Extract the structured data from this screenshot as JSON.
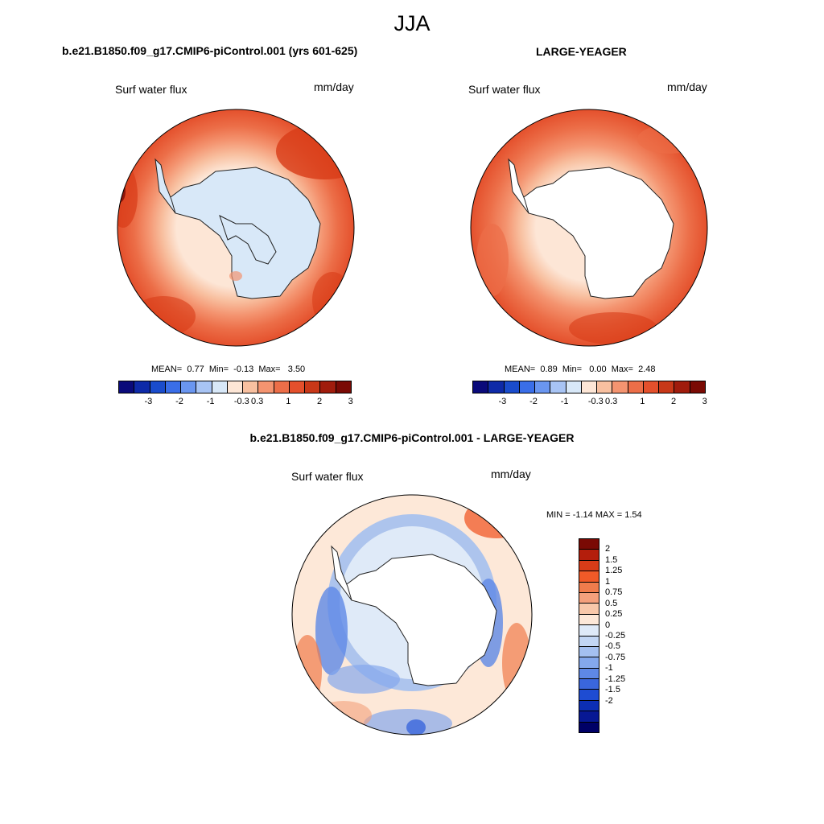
{
  "title": "JJA",
  "panels": [
    {
      "case": "b.e21.B1850.f09_g17.CMIP6-piControl.001 (yrs 601-625)",
      "variable": "Surf water flux",
      "units": "mm/day",
      "stats": {
        "mean_label": "MEAN=",
        "mean": "0.77",
        "min_label": "Min=",
        "min": "-0.13",
        "max_label": "Max=",
        "max": "3.50"
      },
      "icecolor": "#d8e8f8"
    },
    {
      "case": "LARGE-YEAGER",
      "variable": "Surf water flux",
      "units": "mm/day",
      "stats": {
        "mean_label": "MEAN=",
        "mean": "0.89",
        "min_label": "Min=",
        "min": "0.00",
        "max_label": "Max=",
        "max": "2.48"
      },
      "icecolor": "#ffffff"
    }
  ],
  "diff": {
    "case": "b.e21.B1850.f09_g17.CMIP6-piControl.001 - LARGE-YEAGER",
    "variable": "Surf water flux",
    "units": "mm/day",
    "minmax": "MIN =  -1.14 MAX =   1.54"
  },
  "colorbar": {
    "colors": [
      "#0a0a7a",
      "#0e2aa8",
      "#1a4ccc",
      "#3a6ee8",
      "#6a96f0",
      "#a8c4f4",
      "#d8e8f8",
      "#fde6d6",
      "#f8c0a0",
      "#f49470",
      "#ec6e48",
      "#e4502c",
      "#c83818",
      "#a01c0c",
      "#7a0a04"
    ],
    "ticks": [
      "-3",
      "-2",
      "-1",
      "-0.3",
      "0.3",
      "1",
      "2",
      "3"
    ]
  },
  "diff_colorbar": {
    "colors": [
      "#7a0a04",
      "#b41e0c",
      "#d83c18",
      "#f05a28",
      "#f07c4c",
      "#f4a07c",
      "#f8c8aa",
      "#fde8d8",
      "#dfeaf8",
      "#c2d6f4",
      "#a4c0f0",
      "#84a8ec",
      "#5e88e6",
      "#3a66dc",
      "#1e4cd2",
      "#0c2eb4",
      "#071894",
      "#000066"
    ],
    "ticks": [
      "2",
      "1.5",
      "1.25",
      "1",
      "0.75",
      "0.5",
      "0.25",
      "0",
      "-0.25",
      "-0.5",
      "-0.75",
      "-1",
      "-1.25",
      "-1.5",
      "-2"
    ]
  }
}
